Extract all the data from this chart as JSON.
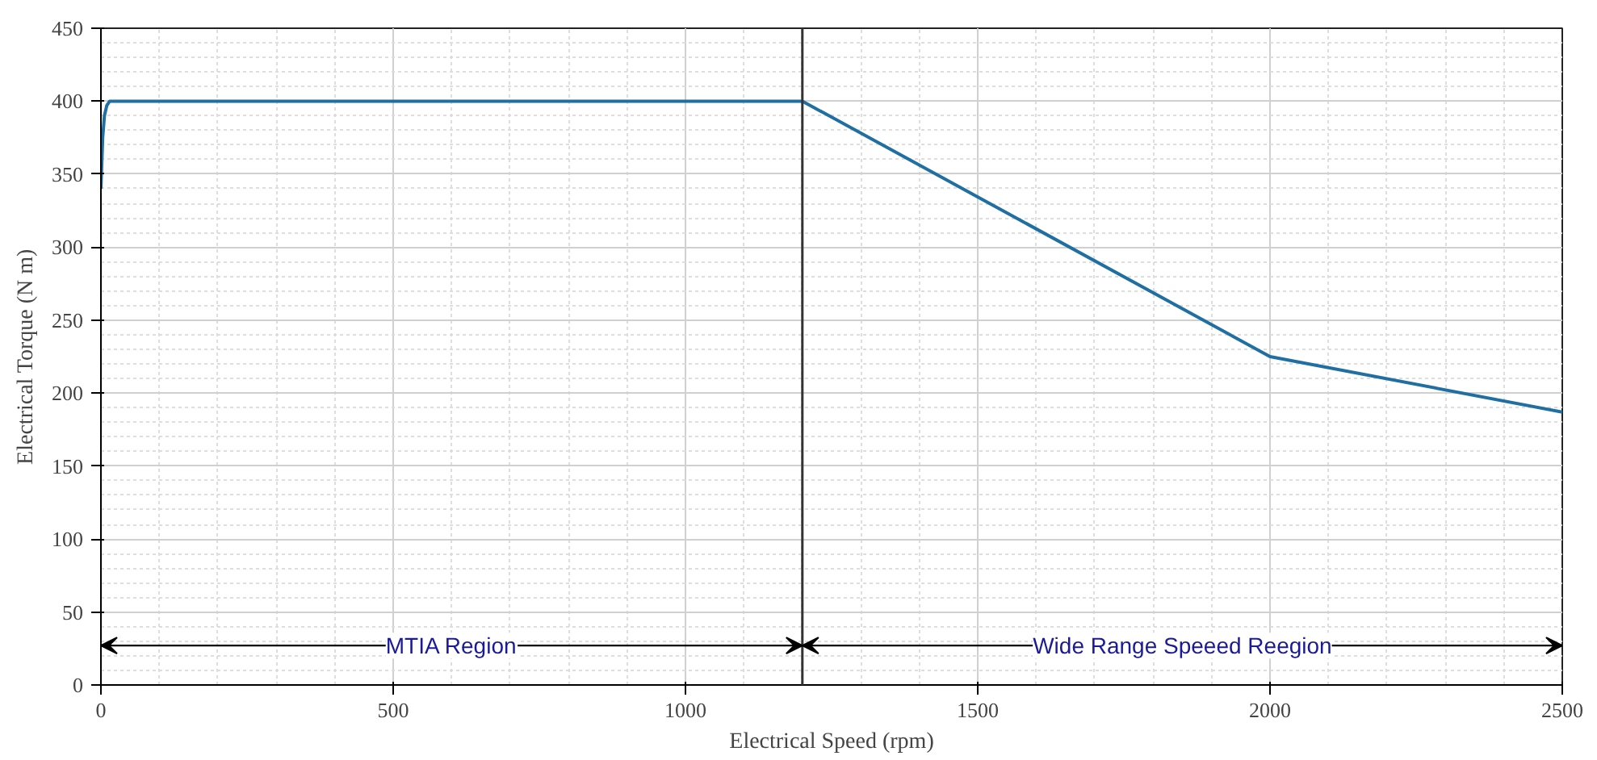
{
  "chart_data": {
    "type": "line",
    "xlabel": "Electrical Speed (rpm)",
    "ylabel": "Electrical Torque (N m)",
    "x": [
      0,
      3,
      6,
      10,
      15,
      1200,
      2000,
      2500
    ],
    "series": [
      {
        "color": "#1f6fa3",
        "values": [
          340,
          375,
          390,
          397,
          400,
          400,
          225,
          187
        ]
      }
    ],
    "xlim": [
      0,
      2500
    ],
    "xticks": [
      0,
      500,
      1000,
      1500,
      2000,
      2500
    ],
    "ylim": [
      0,
      450
    ],
    "yticks": [
      0,
      50,
      100,
      150,
      200,
      250,
      300,
      350,
      400,
      450
    ],
    "grid": true,
    "marker": "none",
    "line_style": "solid",
    "ref_lines": [
      {
        "axis": "x",
        "value": 1200,
        "color": "#333333"
      }
    ],
    "annotations": [
      {
        "text": "MTIA Region",
        "x": 1200,
        "y": 27
      },
      {
        "text": "Wide Range Speeed Reegion",
        "x": 1200,
        "y": 27
      }
    ]
  }
}
